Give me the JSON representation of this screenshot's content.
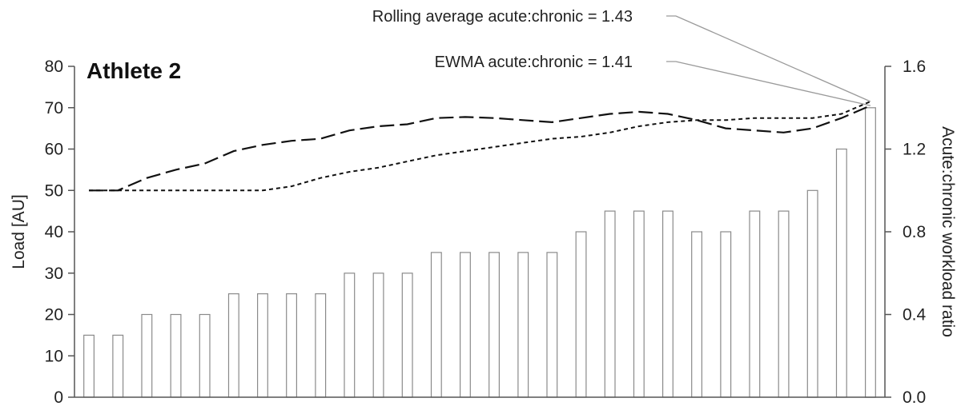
{
  "chart_data": {
    "type": "bar",
    "title": "Athlete 2",
    "ylabel": "Load [AU]",
    "y2label": "Acute:chronic workload ratio",
    "ylim": [
      0,
      80
    ],
    "y2lim": [
      0.0,
      1.6
    ],
    "yticks": [
      "0",
      "10",
      "20",
      "30",
      "40",
      "50",
      "60",
      "70",
      "80"
    ],
    "y2ticks": [
      "0.0",
      "0.4",
      "0.8",
      "1.2",
      "1.6"
    ],
    "bar_values": [
      15,
      15,
      20,
      20,
      20,
      25,
      25,
      25,
      25,
      30,
      30,
      30,
      35,
      35,
      35,
      35,
      35,
      40,
      45,
      45,
      45,
      40,
      40,
      45,
      45,
      50,
      60,
      70
    ],
    "series": [
      {
        "style": "long-dash",
        "axis": "right",
        "values": [
          1.0,
          1.0,
          1.06,
          1.1,
          1.13,
          1.19,
          1.22,
          1.24,
          1.25,
          1.29,
          1.31,
          1.32,
          1.35,
          1.355,
          1.35,
          1.34,
          1.33,
          1.35,
          1.37,
          1.38,
          1.37,
          1.34,
          1.3,
          1.29,
          1.28,
          1.3,
          1.35,
          1.41
        ]
      },
      {
        "style": "short-dash",
        "axis": "right",
        "values": [
          1.0,
          1.0,
          1.0,
          1.0,
          1.0,
          1.0,
          1.0,
          1.02,
          1.06,
          1.09,
          1.11,
          1.14,
          1.17,
          1.19,
          1.21,
          1.23,
          1.25,
          1.26,
          1.28,
          1.31,
          1.33,
          1.34,
          1.34,
          1.35,
          1.35,
          1.35,
          1.37,
          1.43
        ]
      }
    ],
    "annotations": [
      {
        "text": "Rolling average acute:chronic = 1.43",
        "target_series": 1
      },
      {
        "text": "EWMA acute:chronic = 1.41",
        "target_series": 0
      }
    ],
    "grid": false,
    "colors": {
      "bar_fill": "#ffffff",
      "bar_stroke": "#8a8a8a",
      "line": "#111111",
      "leader": "#9a9a9a",
      "axis": "#555555"
    }
  }
}
